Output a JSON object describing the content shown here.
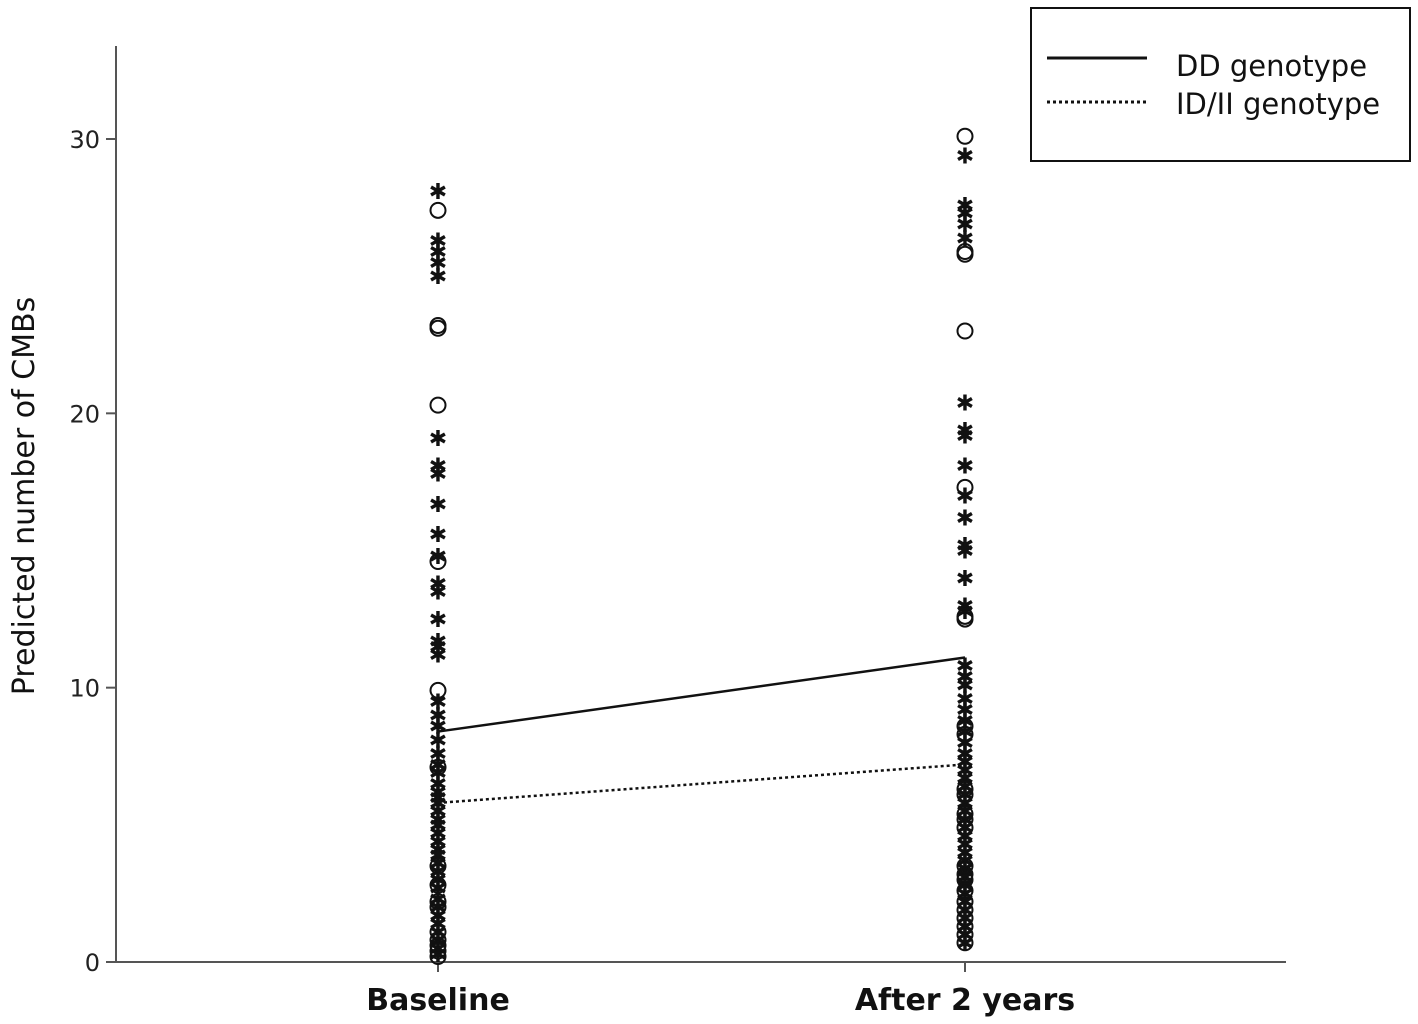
{
  "chart_data": {
    "type": "line",
    "title": "",
    "xlabel": "",
    "ylabel": "Predicted number of CMBs",
    "categories": [
      "Baseline",
      "After 2 years"
    ],
    "ylim": [
      0,
      33
    ],
    "yticks": [
      0,
      10,
      20,
      30
    ],
    "grid": false,
    "legend": {
      "position": "top-right",
      "entries": [
        {
          "label": "DD genotype",
          "line_style": "solid"
        },
        {
          "label": "ID/II genotype",
          "line_style": "dotted"
        }
      ]
    },
    "series": [
      {
        "name": "DD genotype",
        "line_style": "solid",
        "values": [
          8.4,
          11.1
        ]
      },
      {
        "name": "ID/II genotype",
        "line_style": "dotted",
        "values": [
          5.8,
          7.2
        ]
      }
    ],
    "scatter": {
      "marker_types": {
        "DD genotype": "star",
        "ID/II genotype": "circle"
      },
      "points": [
        {
          "category": "Baseline",
          "group": "DD genotype",
          "values": [
            28.1,
            26.3,
            25.9,
            25.5,
            25.0,
            19.1,
            18.1,
            17.8,
            16.7,
            15.6,
            14.8,
            13.8,
            13.5,
            12.5,
            11.7,
            11.5,
            11.2,
            9.5,
            9.0,
            8.6,
            8.1,
            7.6,
            7.2,
            6.9,
            6.5,
            6.2,
            6.0,
            5.8,
            5.5,
            5.2,
            5.0,
            4.7,
            4.4,
            4.1,
            3.9,
            3.6,
            3.3,
            3.0,
            2.7,
            2.3,
            2.0,
            1.7,
            1.4,
            1.1,
            0.8,
            0.5,
            0.3
          ]
        },
        {
          "category": "Baseline",
          "group": "ID/II genotype",
          "values": [
            27.4,
            23.2,
            23.1,
            20.3,
            14.6,
            9.9,
            7.1,
            3.5,
            2.8,
            2.2,
            2.0,
            1.1,
            0.8,
            0.6,
            0.4,
            0.2
          ]
        },
        {
          "category": "After 2 years",
          "group": "DD genotype",
          "values": [
            29.4,
            27.6,
            27.3,
            26.9,
            26.4,
            20.4,
            19.4,
            19.2,
            18.1,
            17.0,
            16.2,
            15.2,
            15.0,
            14.0,
            13.0,
            12.8,
            10.8,
            10.4,
            10.1,
            9.6,
            9.2,
            8.8,
            8.4,
            8.0,
            7.6,
            7.3,
            7.0,
            6.7,
            6.4,
            6.1,
            5.8,
            5.5,
            5.2,
            4.9,
            4.6,
            4.3,
            4.0,
            3.7,
            3.4,
            3.1,
            2.8,
            2.5,
            2.2,
            1.9,
            1.6,
            1.3,
            1.0,
            0.7
          ]
        },
        {
          "category": "After 2 years",
          "group": "ID/II genotype",
          "values": [
            30.1,
            25.9,
            25.8,
            23.0,
            17.3,
            12.6,
            12.5,
            8.6,
            8.3,
            6.3,
            6.1,
            5.4,
            5.2,
            4.9,
            3.5,
            3.2,
            3.0,
            2.6,
            2.2,
            1.9,
            1.6,
            1.3,
            1.0,
            0.7
          ]
        }
      ]
    }
  }
}
